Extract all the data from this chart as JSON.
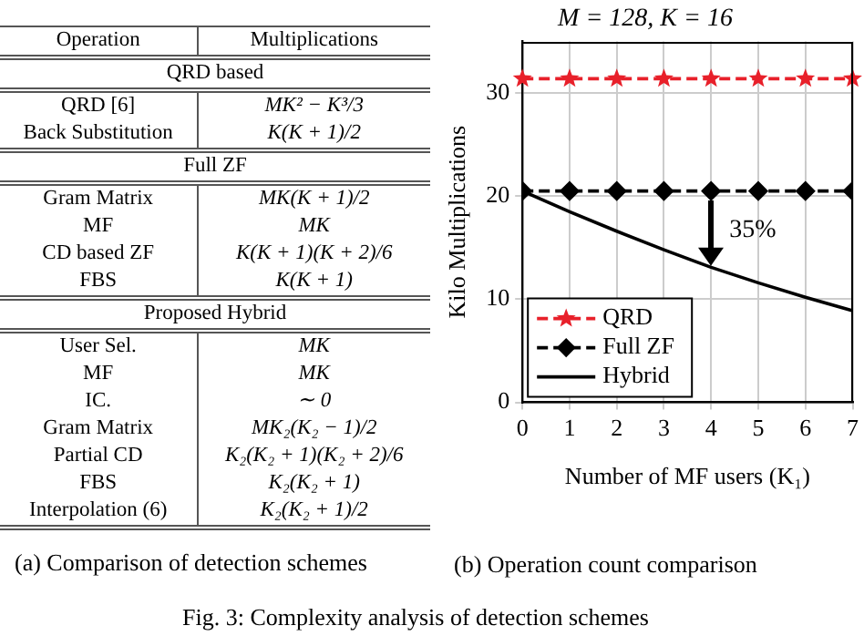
{
  "chart_data": [
    {
      "type": "other",
      "categories": [
        "Operation",
        "Multiplications"
      ],
      "cell_labels": [
        [
          "QRD based"
        ],
        [
          "QRD [6]",
          "MK² − K³/3"
        ],
        [
          "Back Substitution",
          "K(K + 1)/2"
        ],
        [
          "Full ZF"
        ],
        [
          "Gram Matrix",
          "MK(K + 1)/2"
        ],
        [
          "MF",
          "MK"
        ],
        [
          "CD based ZF",
          "K(K + 1)(K + 2)/6"
        ],
        [
          "FBS",
          "K(K + 1)"
        ],
        [
          "Proposed Hybrid"
        ],
        [
          "User Sel.",
          "MK"
        ],
        [
          "MF",
          "MK"
        ],
        [
          "IC.",
          "∼ 0"
        ],
        [
          "Gram Matrix",
          "MK₂(K₂ − 1)/2"
        ],
        [
          "Partial CD",
          "K₂(K₂ + 1)(K₂ + 2)/6"
        ],
        [
          "FBS",
          "K₂(K₂ + 1)"
        ],
        [
          "Interpolation (6)",
          "K₂(K₂ + 1)/2"
        ]
      ],
      "annotations": [
        "(a) Comparison of detection schemes",
        "Fig. 3: Complexity analysis of detection schemes"
      ]
    },
    {
      "type": "line",
      "title": "M = 128, K = 16",
      "xlabel": "Number of MF users (K₁)",
      "ylabel": "Kilo Multiplications",
      "x": [
        0,
        1,
        2,
        3,
        4,
        5,
        6,
        7
      ],
      "series": [
        {
          "name": "QRD",
          "color": "#e8202a",
          "marker": "star",
          "line_style": "dashed",
          "values": [
            31.4,
            31.4,
            31.4,
            31.4,
            31.4,
            31.4,
            31.4,
            31.4
          ]
        },
        {
          "name": "Full ZF",
          "color": "#000000",
          "marker": "diamond",
          "line_style": "dashed",
          "values": [
            20.5,
            20.5,
            20.5,
            20.5,
            20.5,
            20.5,
            20.5,
            20.5
          ]
        },
        {
          "name": "Hybrid",
          "color": "#000000",
          "marker": "none",
          "line_style": "solid",
          "values": [
            20.5,
            18.5,
            16.6,
            14.8,
            13.1,
            11.6,
            10.2,
            8.9
          ]
        }
      ],
      "xlim": [
        0,
        7
      ],
      "xticks": [
        0,
        1,
        2,
        3,
        4,
        5,
        6,
        7
      ],
      "ylim": [
        0,
        35
      ],
      "yticks": [
        0,
        10,
        20,
        30
      ],
      "grid": true,
      "legend": "bottom left",
      "annotations": [
        {
          "text": "35%",
          "x": 4,
          "y": 16.7
        },
        "(b) Operation count comparison"
      ]
    }
  ]
}
